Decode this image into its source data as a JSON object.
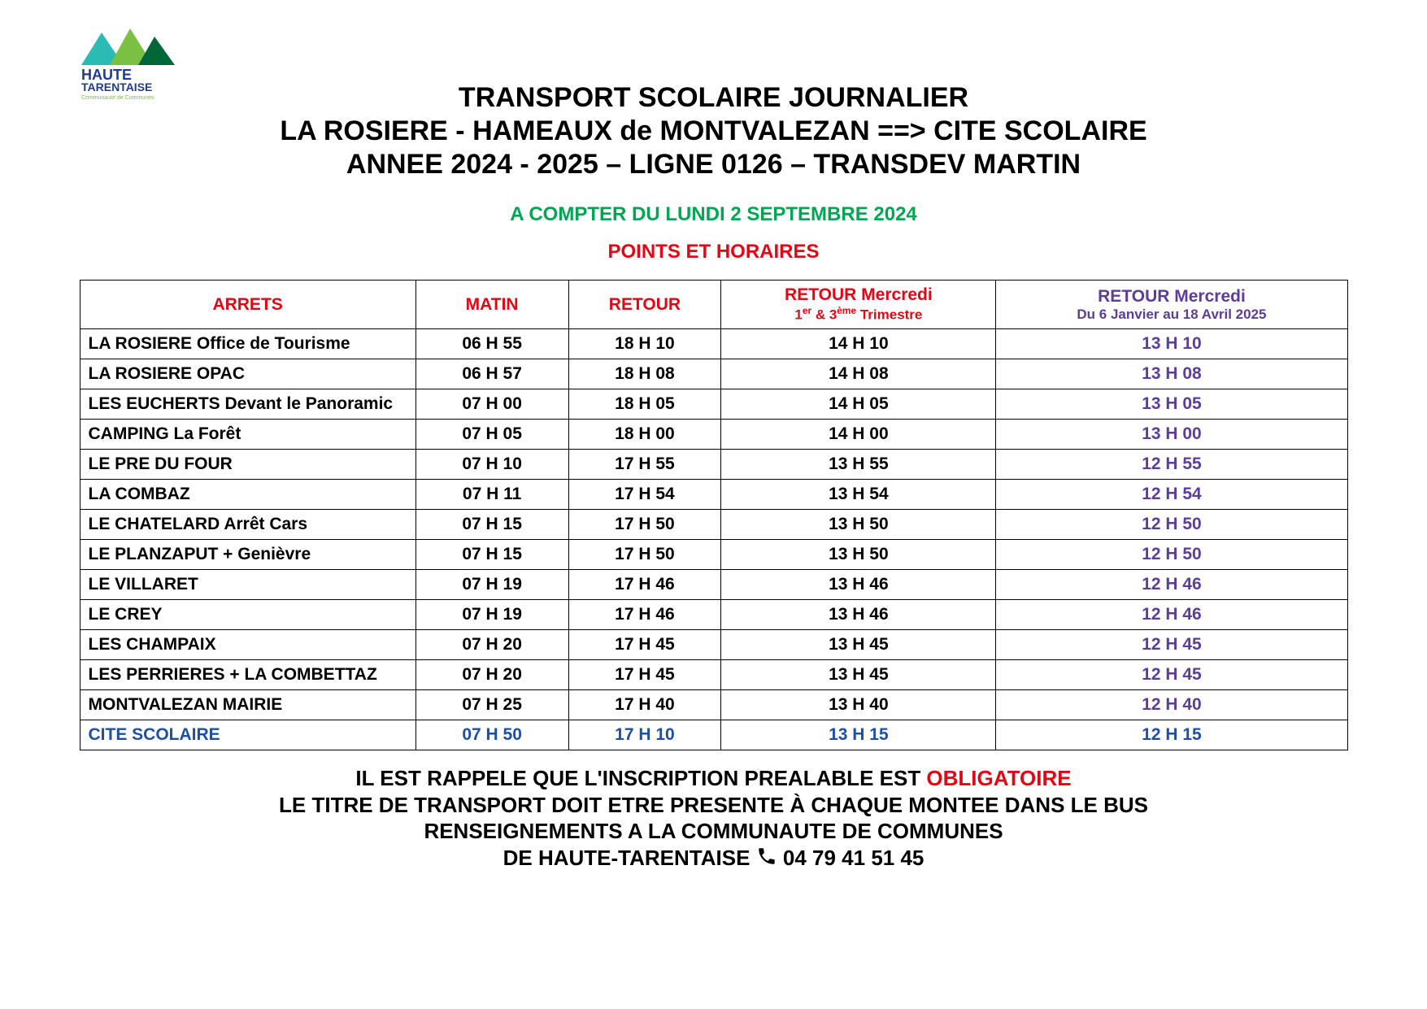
{
  "colors": {
    "green": "#00a651",
    "red": "#e30613",
    "blue": "#1f4fa3",
    "purple": "#5c3d99",
    "logo_cyan": "#2bbbb5",
    "logo_green1": "#7ac143",
    "logo_green2": "#006838",
    "logo_text": "#1e3d8f"
  },
  "logo": {
    "line1": "HAUTE",
    "line2": "TARENTAISE",
    "line3": "Communauté de Communes"
  },
  "header": {
    "line1": "TRANSPORT SCOLAIRE JOURNALIER",
    "line2": "LA ROSIERE - HAMEAUX de MONTVALEZAN ==> CITE SCOLAIRE",
    "line3": "ANNEE 2024 - 2025 – LIGNE  0126 – TRANSDEV MARTIN"
  },
  "sub_green": "A COMPTER DU LUNDI 2 SEPTEMBRE 2024",
  "sub_red": "POINTS ET HORAIRES",
  "table": {
    "col_widths_pct": [
      22,
      10,
      10,
      18,
      23
    ],
    "headers": {
      "col0": "ARRETS",
      "col1": "MATIN",
      "col2": "RETOUR",
      "col3_main": "RETOUR  Mercredi",
      "col3_sub_html": "1<sup>er</sup> & 3<sup>ème</sup> Trimestre",
      "col4_main": "RETOUR  Mercredi",
      "col4_sub": "Du 6 Janvier au 18 Avril 2025"
    },
    "header_colors": {
      "col0": "#e30613",
      "col1": "#e30613",
      "col2": "#e30613",
      "col3": "#e30613",
      "col4": "#5c3d99"
    },
    "rows": [
      {
        "stop": "LA ROSIERE  Office de Tourisme",
        "matin": "06 H 55",
        "retour": "18 H 10",
        "merc1": "14 H 10",
        "merc2": "13 H 10"
      },
      {
        "stop": "LA ROSIERE  OPAC",
        "matin": "06 H 57",
        "retour": "18 H 08",
        "merc1": "14 H 08",
        "merc2": "13 H 08"
      },
      {
        "stop": "LES EUCHERTS Devant le Panoramic",
        "matin": "07 H 00",
        "retour": "18 H 05",
        "merc1": "14 H 05",
        "merc2": "13 H 05"
      },
      {
        "stop": "CAMPING La Forêt",
        "matin": "07 H 05",
        "retour": "18 H 00",
        "merc1": "14 H 00",
        "merc2": "13 H 00"
      },
      {
        "stop": "LE PRE DU FOUR",
        "matin": "07 H 10",
        "retour": "17 H 55",
        "merc1": "13 H 55",
        "merc2": "12 H 55"
      },
      {
        "stop": "LA COMBAZ",
        "matin": "07 H 11",
        "retour": "17 H 54",
        "merc1": "13 H 54",
        "merc2": "12 H 54"
      },
      {
        "stop": "LE CHATELARD Arrêt Cars",
        "matin": "07 H 15",
        "retour": "17 H 50",
        "merc1": "13 H 50",
        "merc2": "12 H 50"
      },
      {
        "stop": "LE PLANZAPUT     +     Genièvre",
        "matin": "07 H 15",
        "retour": "17 H 50",
        "merc1": "13 H 50",
        "merc2": "12 H 50"
      },
      {
        "stop": "LE VILLARET",
        "matin": "07 H 19",
        "retour": "17 H 46",
        "merc1": "13 H 46",
        "merc2": "12 H 46"
      },
      {
        "stop": "LE CREY",
        "matin": "07 H 19",
        "retour": "17 H 46",
        "merc1": "13 H 46",
        "merc2": "12 H 46"
      },
      {
        "stop": "LES CHAMPAIX",
        "matin": "07 H 20",
        "retour": "17 H 45",
        "merc1": "13 H 45",
        "merc2": "12 H 45"
      },
      {
        "stop": "LES PERRIERES + LA COMBETTAZ",
        "matin": "07 H 20",
        "retour": "17 H 45",
        "merc1": "13 H 45",
        "merc2": "12 H 45"
      },
      {
        "stop": "MONTVALEZAN MAIRIE",
        "matin": "07 H 25",
        "retour": "17 H 40",
        "merc1": "13 H 40",
        "merc2": "12 H 40"
      },
      {
        "stop": "CITE SCOLAIRE",
        "matin": "07 H 50",
        "retour": "17 H 10",
        "merc1": "13 H 15",
        "merc2": "12 H 15",
        "hl": true,
        "hl_color": "#1f4fa3"
      }
    ],
    "col4_time_color": "#5c3d99"
  },
  "footer": {
    "line1_pre": "IL EST RAPPELE QUE L'INSCRIPTION PREALABLE EST ",
    "line1_red": "OBLIGATOIRE",
    "line2": "LE TITRE DE TRANSPORT DOIT ETRE PRESENTE À CHAQUE MONTEE DANS LE BUS",
    "line3": "RENSEIGNEMENTS A LA COMMUNAUTE DE COMMUNES",
    "line4_pre": "DE HAUTE-TARENTAISE  ",
    "phone": "  04 79 41 51 45"
  }
}
